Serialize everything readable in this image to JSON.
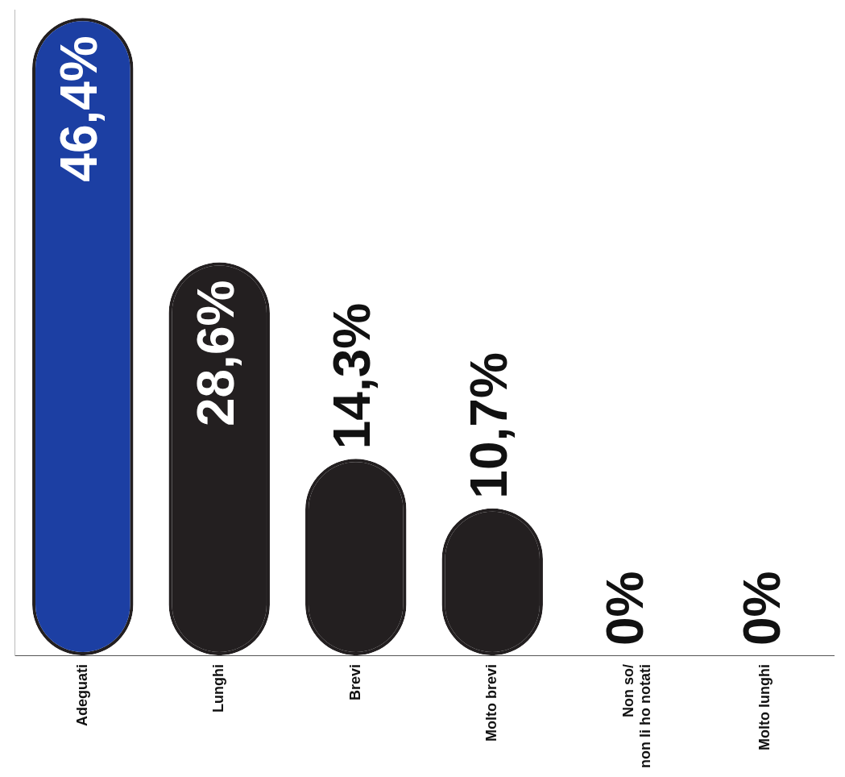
{
  "chart_data": {
    "type": "bar",
    "categories": [
      "Adeguati",
      "Lunghi",
      "Brevi",
      "Molto brevi",
      "Non so/ non li ho notati",
      "Molto lunghi"
    ],
    "values": [
      46.4,
      28.6,
      14.3,
      10.7,
      0,
      0
    ],
    "value_labels": [
      "46,4%",
      "28,6%",
      "14,3%",
      "10,7%",
      "0%",
      "0%"
    ],
    "colors": [
      "#1c3fa3",
      "#231f20",
      "#231f20",
      "#231f20",
      "#231f20",
      "#231f20"
    ],
    "ylim": [
      0,
      47
    ],
    "yticks": [],
    "data_labels": true,
    "tick_labels": "x",
    "grid": false
  }
}
